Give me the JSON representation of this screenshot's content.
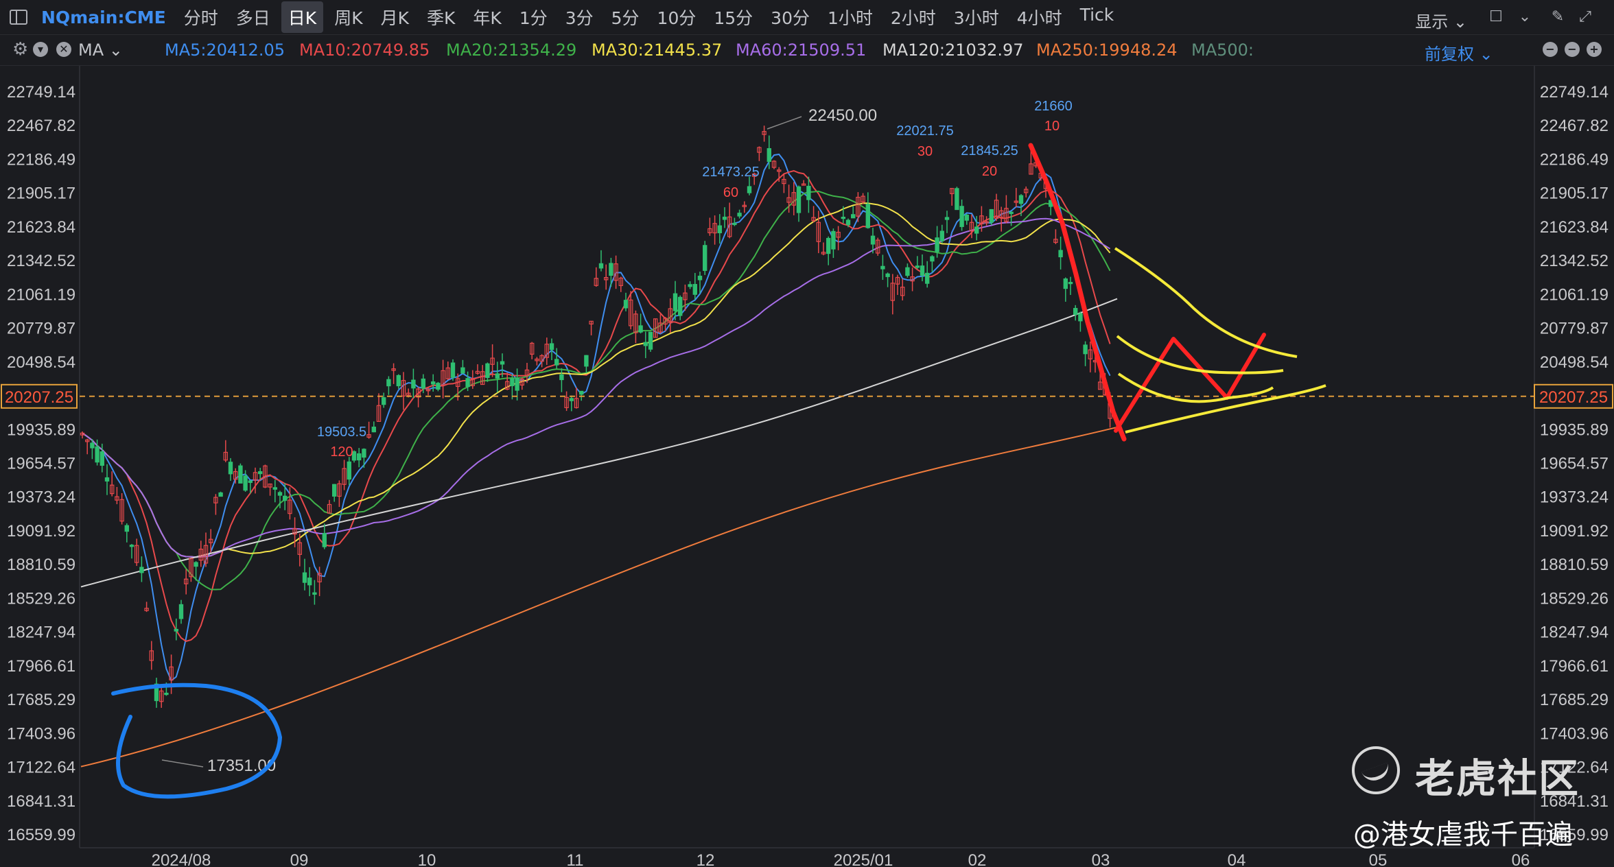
{
  "toolbar": {
    "symbol": "NQmain:CME",
    "periods": [
      "分时",
      "多日",
      "日K",
      "周K",
      "月K",
      "季K",
      "年K",
      "1分",
      "3分",
      "5分",
      "10分",
      "15分",
      "30分",
      "1小时",
      "2小时",
      "3小时",
      "4小时",
      "Tick"
    ],
    "active_period": "日K",
    "display_label": "显示"
  },
  "ma_bar": {
    "prefix": "MA",
    "items": [
      {
        "label": "MA5:20412.05",
        "color": "#3f8ef0"
      },
      {
        "label": "MA10:20749.85",
        "color": "#e8494b"
      },
      {
        "label": "MA20:21354.29",
        "color": "#3fb24a"
      },
      {
        "label": "MA30:21445.37",
        "color": "#f2e14b"
      },
      {
        "label": "MA60:21509.51",
        "color": "#a76ee8"
      },
      {
        "label": "MA120:21032.97",
        "color": "#d6d6d6"
      },
      {
        "label": "MA250:19948.24",
        "color": "#f07c3d"
      },
      {
        "label": "MA500:",
        "color": "#5f8f7c"
      }
    ],
    "adjust_label": "前复权"
  },
  "chart_data": {
    "type": "candlestick",
    "y_ticks": [
      22749.14,
      22467.82,
      22186.49,
      21905.17,
      21623.84,
      21342.52,
      21061.19,
      20779.87,
      20498.54,
      20207.25,
      19935.89,
      19654.57,
      19373.24,
      19091.92,
      18810.59,
      18529.26,
      18247.94,
      17966.61,
      17685.29,
      17403.96,
      17122.64,
      16841.31,
      16559.99
    ],
    "y_tick_labels": [
      "22749.14",
      "22467.82",
      "22186.49",
      "21905.17",
      "21623.84",
      "21342.52",
      "21061.19",
      "20779.87",
      "20498.54",
      "19935.89",
      "19654.57",
      "19373.24",
      "19091.92",
      "18810.59",
      "18529.26",
      "18247.94",
      "17966.61",
      "17685.29",
      "17403.96",
      "17122.64",
      "16841.31",
      "16559.99"
    ],
    "current_price": 20207.25,
    "current_price_label": "20207.25",
    "x_tick_labels": [
      "2024/08",
      "09",
      "10",
      "11",
      "12",
      "2025/01",
      "02",
      "03",
      "04",
      "05",
      "06"
    ],
    "annotations": [
      {
        "text": "22450.00",
        "value": 22450.0
      },
      {
        "text": "17351.00",
        "value": 17351.0
      },
      {
        "text": "21660",
        "value": 21660
      },
      {
        "text": "10",
        "value": null
      },
      {
        "text": "22021.75",
        "value": 22021.75
      },
      {
        "text": "30",
        "value": null
      },
      {
        "text": "21845.25",
        "value": 21845.25
      },
      {
        "text": "20",
        "value": null
      },
      {
        "text": "21473.25",
        "value": 21473.25
      },
      {
        "text": "60",
        "value": null
      },
      {
        "text": "19503.5",
        "value": 19503.5
      },
      {
        "text": "120",
        "value": null
      }
    ],
    "series": [
      {
        "name": "MA5",
        "color": "#3f8ef0"
      },
      {
        "name": "MA10",
        "color": "#e8494b"
      },
      {
        "name": "MA20",
        "color": "#3fb24a"
      },
      {
        "name": "MA30",
        "color": "#f2e14b"
      },
      {
        "name": "MA60",
        "color": "#a76ee8"
      },
      {
        "name": "MA120",
        "color": "#d6d6d6"
      },
      {
        "name": "MA250",
        "color": "#f07c3d"
      }
    ],
    "candle_up_color": "#e8494b",
    "candle_down_color": "#2fbf71"
  },
  "watermark": {
    "brand": "老虎社区",
    "author": "@港女虐我千百遍"
  }
}
